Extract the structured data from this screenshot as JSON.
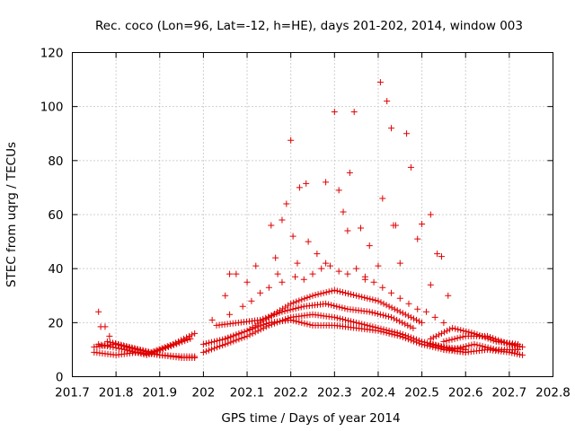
{
  "chart_data": {
    "type": "scatter",
    "title": "Rec. coco (Lon=96, Lat=-12, h=HE), days 201-202, 2014, window 003",
    "xlabel": "GPS time / Days of year 2014",
    "ylabel": "STEC from uqrg / TECUs",
    "xlim": [
      201.7,
      202.8
    ],
    "ylim": [
      0,
      120
    ],
    "xticks": [
      "201.7",
      "201.8",
      "201.9",
      "202",
      "202.1",
      "202.2",
      "202.3",
      "202.4",
      "202.5",
      "202.6",
      "202.7",
      "202.8"
    ],
    "yticks": [
      "0",
      "20",
      "40",
      "60",
      "80",
      "100",
      "120"
    ],
    "grid": true,
    "marker": "plus",
    "color": "#e00000",
    "points_x": [
      201.76,
      201.765,
      201.775,
      201.785,
      202.06,
      202.075,
      202.12,
      202.155,
      202.165,
      202.18,
      202.19,
      202.2,
      202.205,
      202.22,
      202.235,
      202.28,
      202.3,
      202.31,
      202.32,
      202.335,
      202.345,
      202.36,
      202.38,
      202.405,
      202.41,
      202.42,
      202.43,
      202.44,
      202.45,
      202.465,
      202.475,
      202.5,
      202.52,
      202.535,
      202.545,
      202.05,
      202.1,
      202.17,
      202.215,
      202.24,
      202.26,
      202.28,
      202.33,
      202.37,
      202.4,
      202.435,
      202.49,
      202.52,
      202.56,
      202.02,
      202.06,
      202.09,
      202.11,
      202.13,
      202.15,
      202.18,
      202.21,
      202.23,
      202.25,
      202.27,
      202.29,
      202.31,
      202.33,
      202.35,
      202.37,
      202.39,
      202.41,
      202.43,
      202.45,
      202.47,
      202.49,
      202.51,
      202.53,
      202.55
    ],
    "points_y": [
      24,
      18.5,
      18.5,
      15,
      38,
      38,
      41,
      56,
      44,
      58,
      64,
      87.5,
      52,
      70,
      71.5,
      72,
      98,
      69,
      61,
      75.5,
      98,
      55,
      48.5,
      109,
      66,
      102,
      92,
      56,
      42,
      90,
      77.5,
      56.5,
      60,
      45.5,
      44.5,
      30,
      35,
      38,
      42,
      50,
      45.5,
      42,
      54,
      36,
      41,
      56,
      51,
      34,
      30,
      21,
      23,
      26,
      28,
      31,
      33,
      35,
      37,
      36,
      38,
      40,
      41,
      39,
      38,
      40,
      37,
      35,
      33,
      31,
      29,
      27,
      25,
      24,
      22,
      20
    ],
    "track_series": [
      {
        "x": [
          201.75,
          201.8,
          201.85,
          201.9,
          201.95,
          201.98
        ],
        "y": [
          11,
          12,
          10,
          8,
          7.5,
          7.5
        ]
      },
      {
        "x": [
          201.75,
          201.8,
          201.85,
          201.9,
          201.95,
          201.98
        ],
        "y": [
          9,
          8,
          9,
          8,
          7,
          7
        ]
      },
      {
        "x": [
          201.78,
          201.83,
          201.88,
          201.93,
          201.98
        ],
        "y": [
          13,
          11,
          9,
          12,
          16
        ]
      },
      {
        "x": [
          201.76,
          201.82,
          201.87,
          201.92,
          201.97
        ],
        "y": [
          12,
          10,
          8,
          11,
          14
        ]
      },
      {
        "x": [
          202.0,
          202.05,
          202.1,
          202.15,
          202.2,
          202.25,
          202.3,
          202.35,
          202.4,
          202.45,
          202.5,
          202.55,
          202.6
        ],
        "y": [
          9,
          12,
          15,
          19,
          22,
          23,
          22,
          20,
          18,
          16,
          13,
          11,
          10
        ]
      },
      {
        "x": [
          202.0,
          202.05,
          202.1,
          202.15,
          202.2,
          202.25,
          202.3,
          202.35,
          202.4,
          202.45,
          202.5,
          202.55,
          202.6
        ],
        "y": [
          12,
          14,
          17,
          20,
          21,
          19,
          19,
          18,
          17,
          15,
          12,
          10,
          9
        ]
      },
      {
        "x": [
          202.03,
          202.08,
          202.13,
          202.18,
          202.23,
          202.28,
          202.33,
          202.38,
          202.43,
          202.48
        ],
        "y": [
          19,
          20,
          21,
          24,
          26,
          27,
          25,
          24,
          22,
          18
        ]
      },
      {
        "x": [
          202.05,
          202.1,
          202.15,
          202.2,
          202.25,
          202.3,
          202.35,
          202.4,
          202.45,
          202.5
        ],
        "y": [
          14,
          17,
          22,
          27,
          30,
          32,
          30,
          28,
          24,
          20
        ]
      },
      {
        "x": [
          202.52,
          202.57,
          202.62,
          202.67,
          202.72
        ],
        "y": [
          14,
          18,
          16,
          13,
          12
        ]
      },
      {
        "x": [
          202.52,
          202.57,
          202.62,
          202.67,
          202.72
        ],
        "y": [
          12,
          10,
          12,
          10,
          10
        ]
      },
      {
        "x": [
          202.55,
          202.6,
          202.65,
          202.7,
          202.73
        ],
        "y": [
          10,
          9,
          10,
          9,
          8
        ]
      },
      {
        "x": [
          202.55,
          202.6,
          202.65,
          202.7,
          202.73
        ],
        "y": [
          13,
          15,
          15,
          12,
          11
        ]
      }
    ]
  }
}
